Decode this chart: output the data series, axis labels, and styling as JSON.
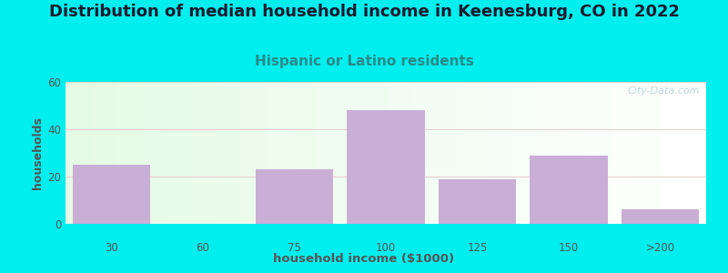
{
  "title": "Distribution of median household income in Keenesburg, CO in 2022",
  "subtitle": "Hispanic or Latino residents",
  "xlabel": "household income ($1000)",
  "ylabel": "households",
  "categories": [
    "30",
    "60",
    "75",
    "100",
    "125",
    "150",
    ">200"
  ],
  "values": [
    25,
    0,
    23,
    48,
    19,
    29,
    6
  ],
  "bar_color": "#c9aed6",
  "background_outer": "#00eeee",
  "background_plot_tl": "#e8f5e8",
  "background_plot_tr": "#f8f8f5",
  "background_plot_bl": "#dff0df",
  "background_plot_br": "#f5f5f0",
  "title_fontsize": 13,
  "subtitle_fontsize": 11,
  "title_color": "#1a1a2e",
  "subtitle_color": "#2a8a8a",
  "ylabel_color": "#555555",
  "xlabel_color": "#555555",
  "tick_color": "#555555",
  "grid_color": "#e8d0d0",
  "ylim": [
    0,
    60
  ],
  "yticks": [
    0,
    20,
    40,
    60
  ],
  "watermark": "City-Data.com"
}
